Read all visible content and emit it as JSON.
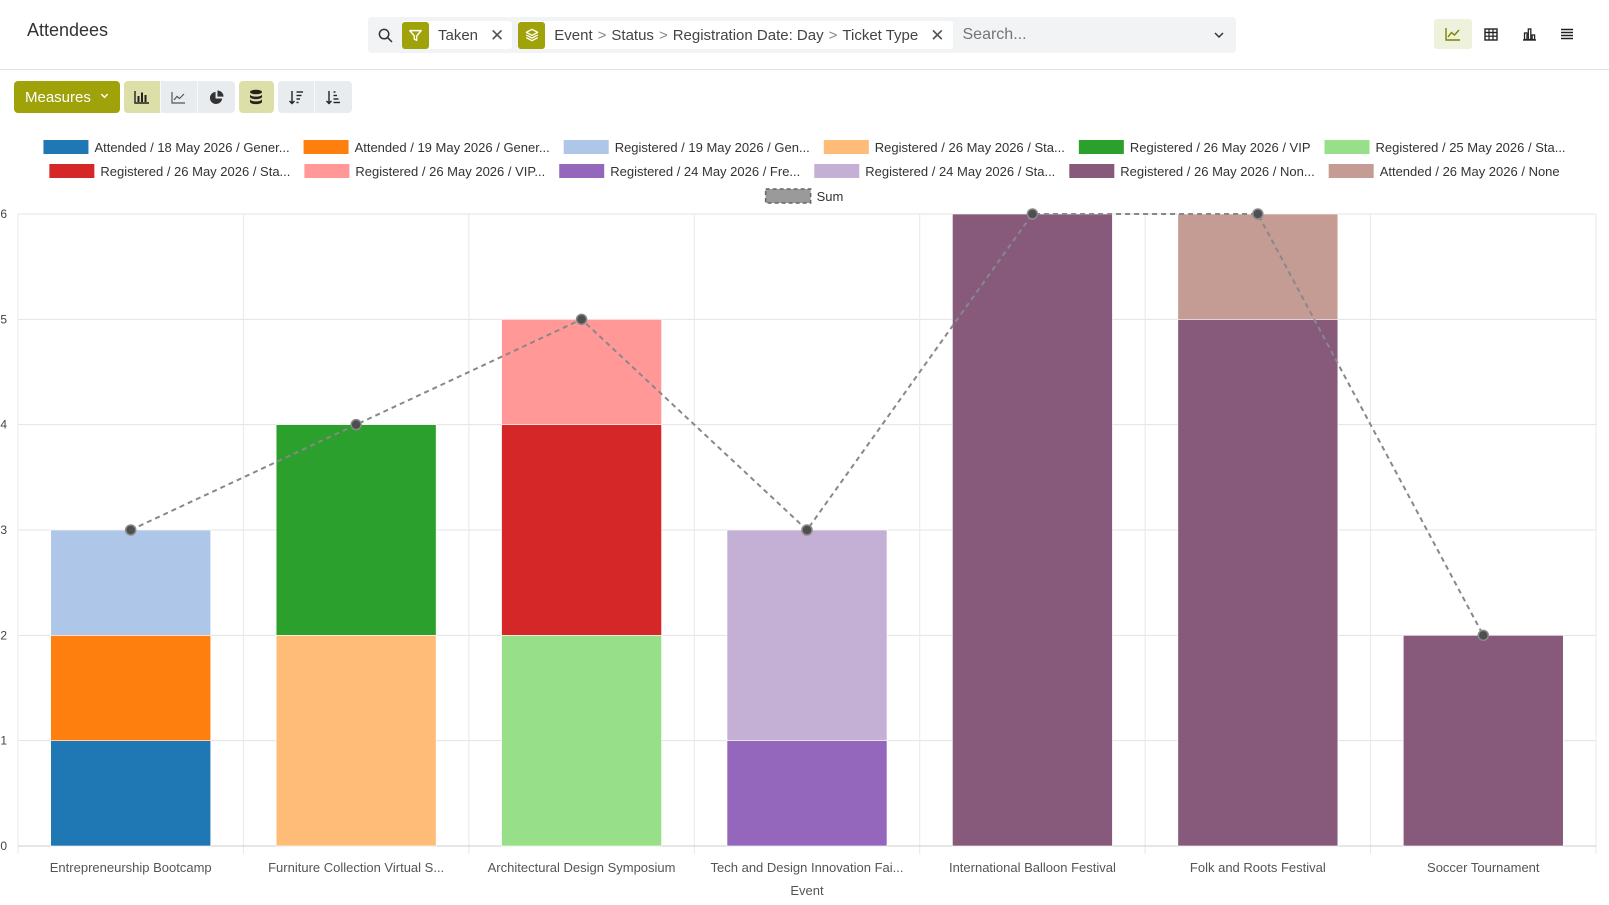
{
  "app": {
    "title": "Attendees"
  },
  "search": {
    "facets": [
      {
        "icon": "filter-icon",
        "text": "Taken"
      },
      {
        "icon": "layers-icon",
        "parts": [
          "Event",
          "Status",
          "Registration Date: Day",
          "Ticket Type"
        ]
      }
    ],
    "placeholder": "Search..."
  },
  "view_switcher": [
    "graph-view-icon",
    "pivot-view-icon",
    "cohort-view-icon",
    "list-view-icon"
  ],
  "active_view": "graph",
  "toolbar": {
    "measures_label": "Measures",
    "chart_type_buttons": [
      "bar-chart-icon",
      "line-chart-icon",
      "pie-chart-icon"
    ],
    "active_chart_type": "bar",
    "stacked_active": true,
    "sort_buttons": [
      "sort-descending-icon",
      "sort-ascending-icon"
    ]
  },
  "colors": {
    "brand": "#a0a20a",
    "sum_line": "#888888"
  },
  "chart_data": {
    "type": "bar",
    "stacked": true,
    "xlabel": "Event",
    "ylabel": "",
    "ylim": [
      0,
      6
    ],
    "yticks": [
      0,
      1,
      2,
      3,
      4,
      5,
      6
    ],
    "grid": true,
    "legend_position": "top",
    "categories": [
      "Entrepreneurship Bootcamp",
      "Furniture Collection Virtual S...",
      "Architectural Design Symposium",
      "Tech and Design Innovation Fai...",
      "International Balloon Festival",
      "Folk and Roots Festival",
      "Soccer Tournament"
    ],
    "series": [
      {
        "name": "Attended / 18 May 2026 / Gener...",
        "color": "#1f77b4",
        "values": [
          1,
          0,
          0,
          0,
          0,
          0,
          0
        ]
      },
      {
        "name": "Attended / 19 May 2026 / Gener...",
        "color": "#ff7f0e",
        "values": [
          1,
          0,
          0,
          0,
          0,
          0,
          0
        ]
      },
      {
        "name": "Registered / 19 May 2026 / Gen...",
        "color": "#aec7e8",
        "values": [
          1,
          0,
          0,
          0,
          0,
          0,
          0
        ]
      },
      {
        "name": "Registered / 26 May 2026 / Sta...",
        "color": "#ffbb78",
        "values": [
          0,
          2,
          0,
          0,
          0,
          0,
          0
        ]
      },
      {
        "name": "Registered / 26 May 2026 / VIP",
        "color": "#2ca02c",
        "values": [
          0,
          2,
          0,
          0,
          0,
          0,
          0
        ]
      },
      {
        "name": "Registered / 25 May 2026 / Sta...",
        "color": "#98df8a",
        "values": [
          0,
          0,
          2,
          0,
          0,
          0,
          0
        ]
      },
      {
        "name": "Registered / 26 May 2026 / Sta...",
        "color": "#d62728",
        "values": [
          0,
          0,
          2,
          0,
          0,
          0,
          0
        ]
      },
      {
        "name": "Registered / 26 May 2026 / VIP...",
        "color": "#ff9896",
        "values": [
          0,
          0,
          1,
          0,
          0,
          0,
          0
        ]
      },
      {
        "name": "Registered / 24 May 2026 / Fre...",
        "color": "#9467bd",
        "values": [
          0,
          0,
          0,
          1,
          0,
          0,
          0
        ]
      },
      {
        "name": "Registered / 24 May 2026 / Sta...",
        "color": "#c5b0d5",
        "values": [
          0,
          0,
          0,
          2,
          0,
          0,
          0
        ]
      },
      {
        "name": "Registered / 26 May 2026 / Non...",
        "color": "#875a7b",
        "values": [
          0,
          0,
          0,
          0,
          6,
          5,
          2
        ]
      },
      {
        "name": "Attended / 26 May 2026 / None",
        "color": "#c49c94",
        "values": [
          0,
          0,
          0,
          0,
          0,
          1,
          0
        ]
      }
    ],
    "sum": {
      "name": "Sum",
      "values": [
        3,
        4,
        5,
        3,
        6,
        6,
        2
      ]
    }
  }
}
